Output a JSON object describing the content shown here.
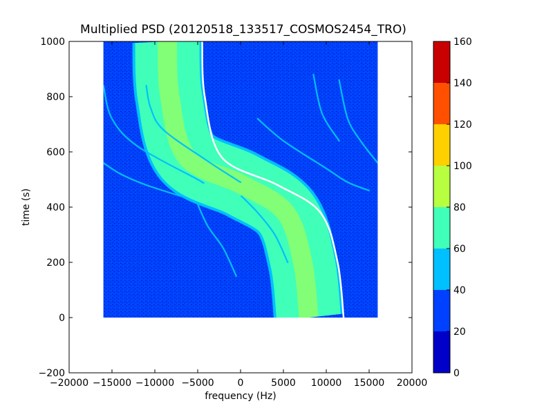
{
  "chart_data": {
    "type": "heatmap",
    "title": "Multiplied PSD (20120518_133517_COSMOS2454_TRO)",
    "xlabel": "frequency (Hz)",
    "ylabel": "time (s)",
    "xlim": [
      -20000,
      20000
    ],
    "ylim": [
      -200,
      1000
    ],
    "data_extent": {
      "x": [
        -16000,
        16000
      ],
      "y": [
        0,
        1000
      ]
    },
    "x_ticks": [
      -20000,
      -15000,
      -10000,
      -5000,
      0,
      5000,
      10000,
      15000,
      20000
    ],
    "x_tick_labels": [
      "−20000",
      "−15000",
      "−10000",
      "−5000",
      "0",
      "5000",
      "10000",
      "15000",
      "20000"
    ],
    "y_ticks": [
      -200,
      0,
      200,
      400,
      600,
      800,
      1000
    ],
    "y_tick_labels": [
      "−200",
      "0",
      "200",
      "400",
      "600",
      "800",
      "1000"
    ],
    "colorbar": {
      "range": [
        0,
        160
      ],
      "ticks": [
        0,
        20,
        40,
        60,
        80,
        100,
        120,
        140,
        160
      ],
      "tick_labels": [
        "0",
        "20",
        "40",
        "60",
        "80",
        "100",
        "120",
        "140",
        "160"
      ],
      "levels": [
        {
          "from": 0,
          "to": 20,
          "color": "#0000c8"
        },
        {
          "from": 20,
          "to": 40,
          "color": "#0040ff"
        },
        {
          "from": 40,
          "to": 60,
          "color": "#00c0ff"
        },
        {
          "from": 60,
          "to": 80,
          "color": "#40ffb8"
        },
        {
          "from": 80,
          "to": 100,
          "color": "#b8ff40"
        },
        {
          "from": 100,
          "to": 120,
          "color": "#ffd000"
        },
        {
          "from": 120,
          "to": 140,
          "color": "#ff5000"
        },
        {
          "from": 140,
          "to": 160,
          "color": "#c80000"
        }
      ]
    },
    "main_band": {
      "center_edge_points": [
        [
          11700,
          0
        ],
        [
          11000,
          200
        ],
        [
          9000,
          380
        ],
        [
          4000,
          480
        ],
        [
          -2500,
          580
        ],
        [
          -4500,
          800
        ],
        [
          -4800,
          1000
        ]
      ],
      "inner_width_hz": 4500,
      "outer_width_hz": 7500,
      "edge_value": 70,
      "center_value": 85
    },
    "doppler_traces": [
      {
        "points": [
          [
            -16000,
            840
          ],
          [
            -15000,
            720
          ],
          [
            -12000,
            620
          ],
          [
            -5000,
            500
          ],
          [
            -4500,
            490
          ]
        ],
        "value": 45
      },
      {
        "points": [
          [
            -16000,
            560
          ],
          [
            -14000,
            520
          ],
          [
            -11000,
            480
          ],
          [
            -7000,
            440
          ]
        ],
        "value": 45
      },
      {
        "points": [
          [
            -11000,
            840
          ],
          [
            -10500,
            760
          ],
          [
            -9000,
            680
          ],
          [
            -4000,
            570
          ],
          [
            0,
            490
          ]
        ],
        "value": 45
      },
      {
        "points": [
          [
            -5000,
            410
          ],
          [
            -3800,
            330
          ],
          [
            -2000,
            250
          ],
          [
            -500,
            150
          ]
        ],
        "value": 45
      },
      {
        "points": [
          [
            100,
            440
          ],
          [
            2000,
            380
          ],
          [
            4000,
            300
          ],
          [
            5500,
            200
          ]
        ],
        "value": 45
      },
      {
        "points": [
          [
            2000,
            720
          ],
          [
            5000,
            640
          ],
          [
            10000,
            540
          ],
          [
            12500,
            490
          ],
          [
            15000,
            460
          ]
        ],
        "value": 45
      },
      {
        "points": [
          [
            8500,
            880
          ],
          [
            9500,
            740
          ],
          [
            11500,
            640
          ]
        ],
        "value": 45
      },
      {
        "points": [
          [
            11500,
            860
          ],
          [
            12500,
            720
          ],
          [
            14000,
            640
          ],
          [
            16000,
            560
          ]
        ],
        "value": 45
      }
    ],
    "background_value": 25,
    "grid": false
  }
}
